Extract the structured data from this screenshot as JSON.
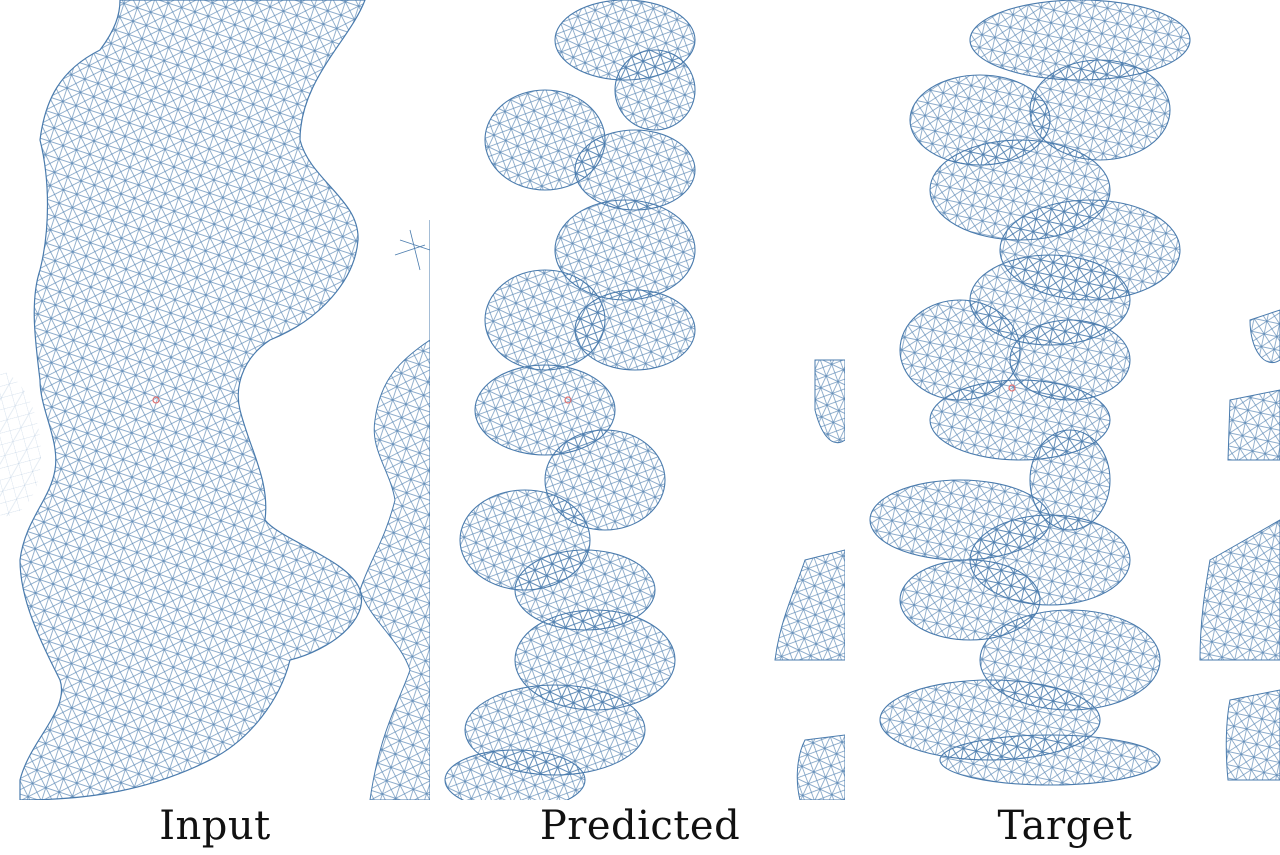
{
  "colors": {
    "mesh": "#4a7bad",
    "mesh_faint": "#a9c0d8",
    "background": "#ffffff",
    "marker": "#e07070"
  },
  "panels": [
    {
      "id": "input",
      "caption": "Input"
    },
    {
      "id": "predicted",
      "caption": "Predicted"
    },
    {
      "id": "target",
      "caption": "Target"
    }
  ]
}
